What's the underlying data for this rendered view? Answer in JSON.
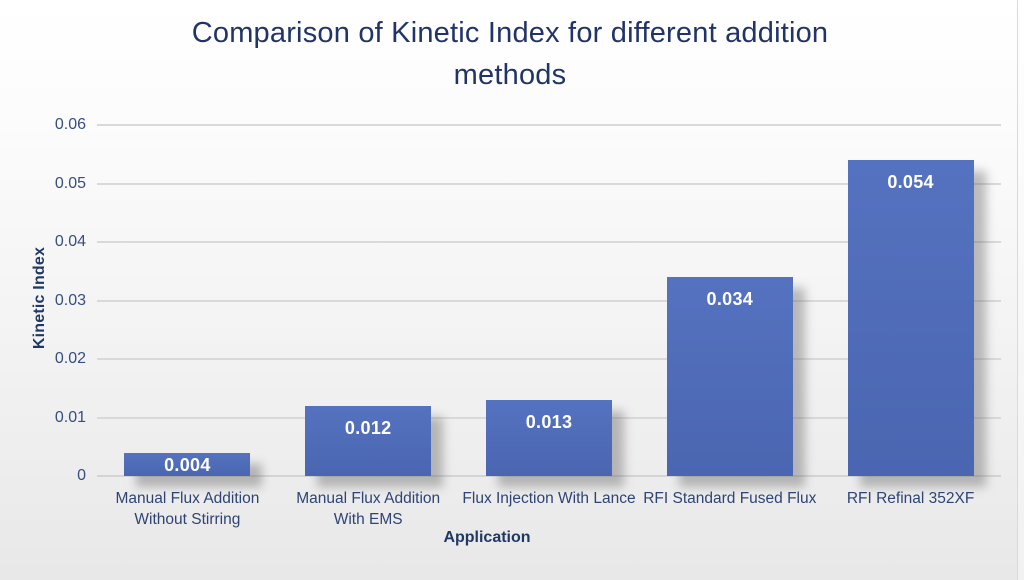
{
  "chart_data": {
    "type": "bar",
    "title": "Comparison of Kinetic Index for different addition methods",
    "xlabel": "Application",
    "ylabel": "Kinetic Index",
    "categories": [
      "Manual Flux Addition\nWithout Stirring",
      "Manual Flux Addition\nWith EMS",
      "Flux Injection With Lance",
      "RFI Standard Fused Flux",
      "RFI Refinal 352XF"
    ],
    "values": [
      0.004,
      0.012,
      0.013,
      0.034,
      0.054
    ],
    "data_labels": [
      "0.004",
      "0.012",
      "0.013",
      "0.034",
      "0.054"
    ],
    "ylim": [
      0,
      0.06
    ],
    "yticks": [
      {
        "label": "0",
        "value": 0
      },
      {
        "label": "0.01",
        "value": 0.01
      },
      {
        "label": "0.02",
        "value": 0.02
      },
      {
        "label": "0.03",
        "value": 0.03
      },
      {
        "label": "0.04",
        "value": 0.04
      },
      {
        "label": "0.05",
        "value": 0.05
      },
      {
        "label": "0.06",
        "value": 0.06
      }
    ],
    "grid": true,
    "legend": "none",
    "colors": {
      "bar": "#4d69b4",
      "grid": "#d9d9d9",
      "title_text": "#203467",
      "axis_text": "#2e4474",
      "data_label_text": "#ffffff",
      "background_top": "#ffffff",
      "background_bottom": "#e8e8e8"
    }
  }
}
